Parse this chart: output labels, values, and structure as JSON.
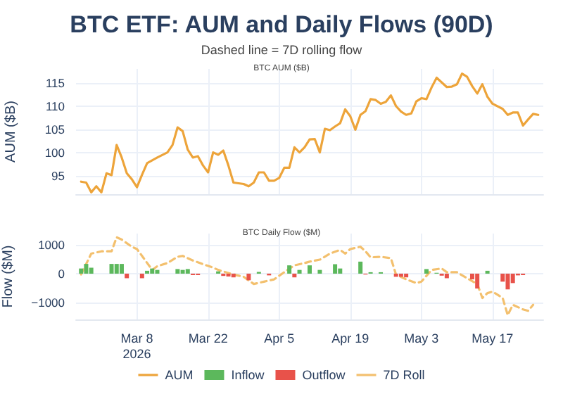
{
  "chart_data": [
    {
      "type": "line",
      "title": "BTC ETF: AUM and Daily Flows (90D)",
      "subtitle": "Dashed line = 7D rolling flow",
      "annotations": [
        "BTC AUM ($B)"
      ],
      "ylabel": "AUM ($B)",
      "xlim": [
        "2026-02-24",
        "2026-05-27"
      ],
      "xticks": [
        {
          "value": "2026-03-08",
          "label": null
        },
        {
          "value": "2026-03-22",
          "label": null
        },
        {
          "value": "2026-04-05",
          "label": null
        },
        {
          "value": "2026-04-19",
          "label": null
        },
        {
          "value": "2026-05-03",
          "label": null
        },
        {
          "value": "2026-05-17",
          "label": null
        }
      ],
      "ylim": [
        91,
        118
      ],
      "yticks": [
        95,
        100,
        105,
        110,
        115
      ],
      "grid": true,
      "tick_labels": "y",
      "marker": "none",
      "legend": "bottom",
      "series": [
        {
          "name": "AUM",
          "color": "#eda43a",
          "line_style": "solid",
          "x": [
            "2026-02-25",
            "2026-02-26",
            "2026-02-27",
            "2026-02-28",
            "2026-03-01",
            "2026-03-02",
            "2026-03-03",
            "2026-03-04",
            "2026-03-05",
            "2026-03-06",
            "2026-03-07",
            "2026-03-08",
            "2026-03-09",
            "2026-03-10",
            "2026-03-12",
            "2026-03-14",
            "2026-03-15",
            "2026-03-16",
            "2026-03-17",
            "2026-03-18",
            "2026-03-19",
            "2026-03-20",
            "2026-03-21",
            "2026-03-22",
            "2026-03-23",
            "2026-03-24",
            "2026-03-25",
            "2026-03-26",
            "2026-03-27",
            "2026-03-29",
            "2026-03-30",
            "2026-03-31",
            "2026-04-01",
            "2026-04-02",
            "2026-04-03",
            "2026-04-04",
            "2026-04-05",
            "2026-04-06",
            "2026-04-07",
            "2026-04-08",
            "2026-04-09",
            "2026-04-10",
            "2026-04-11",
            "2026-04-12",
            "2026-04-13",
            "2026-04-14",
            "2026-04-15",
            "2026-04-16",
            "2026-04-17",
            "2026-04-18",
            "2026-04-19",
            "2026-04-20",
            "2026-04-21",
            "2026-04-22",
            "2026-04-23",
            "2026-04-24",
            "2026-04-25",
            "2026-04-26",
            "2026-04-27",
            "2026-04-28",
            "2026-04-29",
            "2026-04-30",
            "2026-05-01",
            "2026-05-02",
            "2026-05-03",
            "2026-05-04",
            "2026-05-05",
            "2026-05-06",
            "2026-05-08",
            "2026-05-09",
            "2026-05-10",
            "2026-05-11",
            "2026-05-12",
            "2026-05-13",
            "2026-05-14",
            "2026-05-15",
            "2026-05-16",
            "2026-05-17",
            "2026-05-19",
            "2026-05-20",
            "2026-05-21",
            "2026-05-22",
            "2026-05-23",
            "2026-05-24",
            "2026-05-25",
            "2026-05-26"
          ],
          "values": [
            93.7,
            93.5,
            91.4,
            92.7,
            91.4,
            95.5,
            95.1,
            101.6,
            98.9,
            95.5,
            94.2,
            92.5,
            95.2,
            97.7,
            98.9,
            100.0,
            101.6,
            105.4,
            104.6,
            100.6,
            98.9,
            99.2,
            97.2,
            95.7,
            100.0,
            99.5,
            100.4,
            97.2,
            93.5,
            93.2,
            92.7,
            93.5,
            95.7,
            95.7,
            93.9,
            93.9,
            94.5,
            96.7,
            96.7,
            101.1,
            100.0,
            101.1,
            102.8,
            102.9,
            100.0,
            105.1,
            104.8,
            105.6,
            106.3,
            109.3,
            107.8,
            104.9,
            108.1,
            108.9,
            111.5,
            111.3,
            110.5,
            110.9,
            112.3,
            110.0,
            108.8,
            108.1,
            108.4,
            111.0,
            111.7,
            111.5,
            114.0,
            116.1,
            114.1,
            114.2,
            114.7,
            117.0,
            116.3,
            114.3,
            112.7,
            114.7,
            112.0,
            110.5,
            109.4,
            108.1,
            108.6,
            108.6,
            105.8,
            107.1,
            108.3,
            108.1
          ]
        }
      ]
    },
    {
      "type": "bar",
      "title": "BTC Daily Flow ($M)",
      "ylabel": "Flow ($M)",
      "xlim": [
        "2026-02-24",
        "2026-05-27"
      ],
      "xticks": [
        {
          "value": "2026-03-08",
          "label": "Mar 8\n2026"
        },
        {
          "value": "2026-03-22",
          "label": "Mar 22"
        },
        {
          "value": "2026-04-05",
          "label": "Apr 5"
        },
        {
          "value": "2026-04-19",
          "label": "Apr 19"
        },
        {
          "value": "2026-05-03",
          "label": "May 3"
        },
        {
          "value": "2026-05-17",
          "label": "May 17"
        }
      ],
      "ylim": [
        -1600,
        1400
      ],
      "yticks": [
        {
          "value": -1000,
          "label": "−1000"
        },
        0,
        1000
      ],
      "grid": true,
      "legend": "bottom",
      "series": [
        {
          "name": "Inflow",
          "color": "#5cb85c",
          "x": [
            "2026-02-25",
            "2026-02-26",
            "2026-02-27",
            "2026-03-03",
            "2026-03-04",
            "2026-03-05",
            "2026-03-10",
            "2026-03-11",
            "2026-03-12",
            "2026-03-16",
            "2026-03-17",
            "2026-03-18",
            "2026-03-24",
            "2026-04-01",
            "2026-04-07",
            "2026-04-09",
            "2026-04-11",
            "2026-04-13",
            "2026-04-16",
            "2026-04-17",
            "2026-04-21",
            "2026-04-23",
            "2026-04-25",
            "2026-05-04",
            "2026-05-06",
            "2026-05-16"
          ],
          "values": [
            180,
            340,
            210,
            340,
            340,
            340,
            100,
            180,
            130,
            160,
            130,
            160,
            80,
            60,
            290,
            130,
            290,
            130,
            330,
            180,
            420,
            50,
            50,
            160,
            30,
            100
          ]
        },
        {
          "name": "Outflow",
          "color": "#e8524a",
          "x": [
            "2026-03-06",
            "2026-03-09",
            "2026-03-19",
            "2026-03-20",
            "2026-03-25",
            "2026-03-26",
            "2026-03-27",
            "2026-03-30",
            "2026-04-03",
            "2026-04-08",
            "2026-04-22",
            "2026-04-28",
            "2026-04-29",
            "2026-04-30",
            "2026-05-07",
            "2026-05-08",
            "2026-05-13",
            "2026-05-14",
            "2026-05-19",
            "2026-05-20",
            "2026-05-21",
            "2026-05-22",
            "2026-05-23"
          ],
          "values": [
            -160,
            -160,
            -50,
            -50,
            -80,
            -100,
            -130,
            -230,
            -60,
            -130,
            -30,
            -110,
            -110,
            -130,
            -70,
            -160,
            -200,
            -520,
            -280,
            -550,
            -330,
            -60,
            -50
          ]
        },
        {
          "name": "7D Roll",
          "type": "line",
          "color": "#f3c06e",
          "line_style": "dashed",
          "marker": "none",
          "x": [
            "2026-02-25",
            "2026-02-27",
            "2026-03-01",
            "2026-03-03",
            "2026-03-04",
            "2026-03-05",
            "2026-03-07",
            "2026-03-08",
            "2026-03-09",
            "2026-03-11",
            "2026-03-12",
            "2026-03-14",
            "2026-03-16",
            "2026-03-17",
            "2026-03-19",
            "2026-03-21",
            "2026-03-23",
            "2026-03-24",
            "2026-03-27",
            "2026-03-29",
            "2026-03-31",
            "2026-04-02",
            "2026-04-04",
            "2026-04-06",
            "2026-04-08",
            "2026-04-10",
            "2026-04-11",
            "2026-04-13",
            "2026-04-15",
            "2026-04-17",
            "2026-04-18",
            "2026-04-19",
            "2026-04-21",
            "2026-04-22",
            "2026-04-23",
            "2026-04-25",
            "2026-04-27",
            "2026-04-28",
            "2026-04-30",
            "2026-05-02",
            "2026-05-03",
            "2026-05-05",
            "2026-05-07",
            "2026-05-08",
            "2026-05-10",
            "2026-05-12",
            "2026-05-14",
            "2026-05-15",
            "2026-05-16",
            "2026-05-17",
            "2026-05-19",
            "2026-05-20",
            "2026-05-21",
            "2026-05-23",
            "2026-05-24",
            "2026-05-25"
          ],
          "values": [
            -30,
            700,
            780,
            780,
            1270,
            1190,
            940,
            860,
            620,
            130,
            260,
            370,
            590,
            620,
            460,
            330,
            210,
            130,
            -30,
            -110,
            -360,
            -280,
            -200,
            50,
            290,
            370,
            420,
            490,
            700,
            830,
            700,
            860,
            940,
            780,
            570,
            590,
            540,
            -30,
            -200,
            -330,
            -280,
            130,
            180,
            50,
            50,
            -160,
            -360,
            -850,
            -680,
            -630,
            -850,
            -1450,
            -1090,
            -1250,
            -1300,
            -1090
          ]
        }
      ]
    }
  ]
}
